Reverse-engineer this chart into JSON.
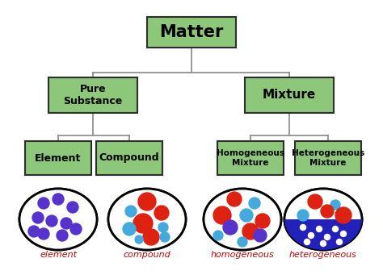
{
  "bg_color": "#ffffff",
  "box_fill": "#8dc87a",
  "box_edge": "#2d2d2d",
  "line_color": "#888888",
  "title": "Matter",
  "level1": [
    "Pure\nSubstance",
    "Mixture"
  ],
  "level2": [
    "Element",
    "Compound",
    "Homogeneous\nMixture",
    "Heterogeneous\nMixture"
  ],
  "labels": [
    "element",
    "compound",
    "homogeneous",
    "heterogeneous"
  ],
  "label_color": "#cc0000",
  "dot_purple": "#5533cc",
  "dot_red": "#dd2211",
  "dot_cyan": "#44aadd",
  "dot_blue_dark": "#2222bb"
}
